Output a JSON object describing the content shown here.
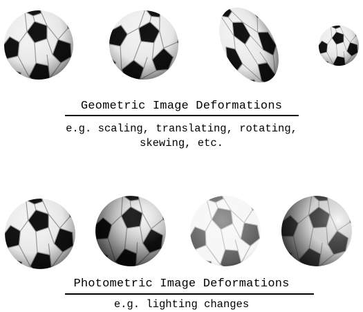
{
  "geometric": {
    "title": "Geometric Image Deformations",
    "description_line1": "e.g. scaling, translating, rotating,",
    "description_line2": "skewing, etc."
  },
  "photometric": {
    "title": "Photometric Image Deformations",
    "description": "e.g. lighting changes"
  },
  "colors": {
    "background": "#ffffff",
    "text": "#000000",
    "ball_white": "#f2f2f2",
    "ball_black": "#111111"
  },
  "icons": [
    "soccer-ball"
  ]
}
